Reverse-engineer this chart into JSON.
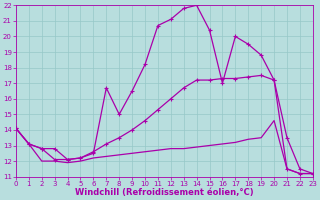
{
  "xlabel": "Windchill (Refroidissement éolien,°C)",
  "xlim": [
    0,
    23
  ],
  "ylim": [
    11,
    22
  ],
  "xticks": [
    0,
    1,
    2,
    3,
    4,
    5,
    6,
    7,
    8,
    9,
    10,
    11,
    12,
    13,
    14,
    15,
    16,
    17,
    18,
    19,
    20,
    21,
    22,
    23
  ],
  "yticks": [
    11,
    12,
    13,
    14,
    15,
    16,
    17,
    18,
    19,
    20,
    21,
    22
  ],
  "bg_color": "#b8dede",
  "grid_color": "#96c8c8",
  "line_color": "#aa00aa",
  "curve1_x": [
    0,
    1,
    2,
    3,
    4,
    5,
    6,
    7,
    8,
    9,
    10,
    11,
    12,
    13,
    14,
    15,
    16,
    17,
    18,
    19,
    20,
    21,
    22,
    23
  ],
  "curve1_y": [
    14.1,
    13.1,
    12.8,
    12.1,
    12.1,
    12.2,
    12.5,
    16.7,
    15.0,
    16.5,
    18.2,
    20.7,
    21.1,
    21.8,
    22.0,
    20.4,
    17.0,
    20.0,
    19.5,
    18.8,
    17.2,
    11.5,
    11.2,
    11.2
  ],
  "curve1_markers": true,
  "curve2_x": [
    0,
    1,
    2,
    3,
    4,
    5,
    6,
    7,
    8,
    9,
    10,
    11,
    12,
    13,
    14,
    15,
    16,
    17,
    18,
    19,
    20,
    21,
    22,
    23
  ],
  "curve2_y": [
    14.1,
    13.1,
    12.8,
    12.8,
    12.1,
    12.2,
    12.6,
    13.1,
    13.5,
    14.0,
    14.6,
    15.3,
    16.0,
    16.7,
    17.2,
    17.2,
    17.3,
    17.3,
    17.4,
    17.5,
    17.2,
    13.5,
    11.5,
    11.2
  ],
  "curve2_markers": true,
  "curve3_x": [
    0,
    1,
    2,
    3,
    4,
    5,
    6,
    7,
    8,
    9,
    10,
    11,
    12,
    13,
    14,
    15,
    16,
    17,
    18,
    19,
    20,
    21,
    22,
    23
  ],
  "curve3_y": [
    14.1,
    13.1,
    12.0,
    12.0,
    11.9,
    12.0,
    12.2,
    12.3,
    12.4,
    12.5,
    12.6,
    12.7,
    12.8,
    12.8,
    12.9,
    13.0,
    13.1,
    13.2,
    13.4,
    13.5,
    14.6,
    11.5,
    11.2,
    11.2
  ],
  "curve3_markers": false,
  "markersize": 2.5,
  "linewidth": 0.9,
  "tick_fontsize": 5.0,
  "xlabel_fontsize": 6.0
}
